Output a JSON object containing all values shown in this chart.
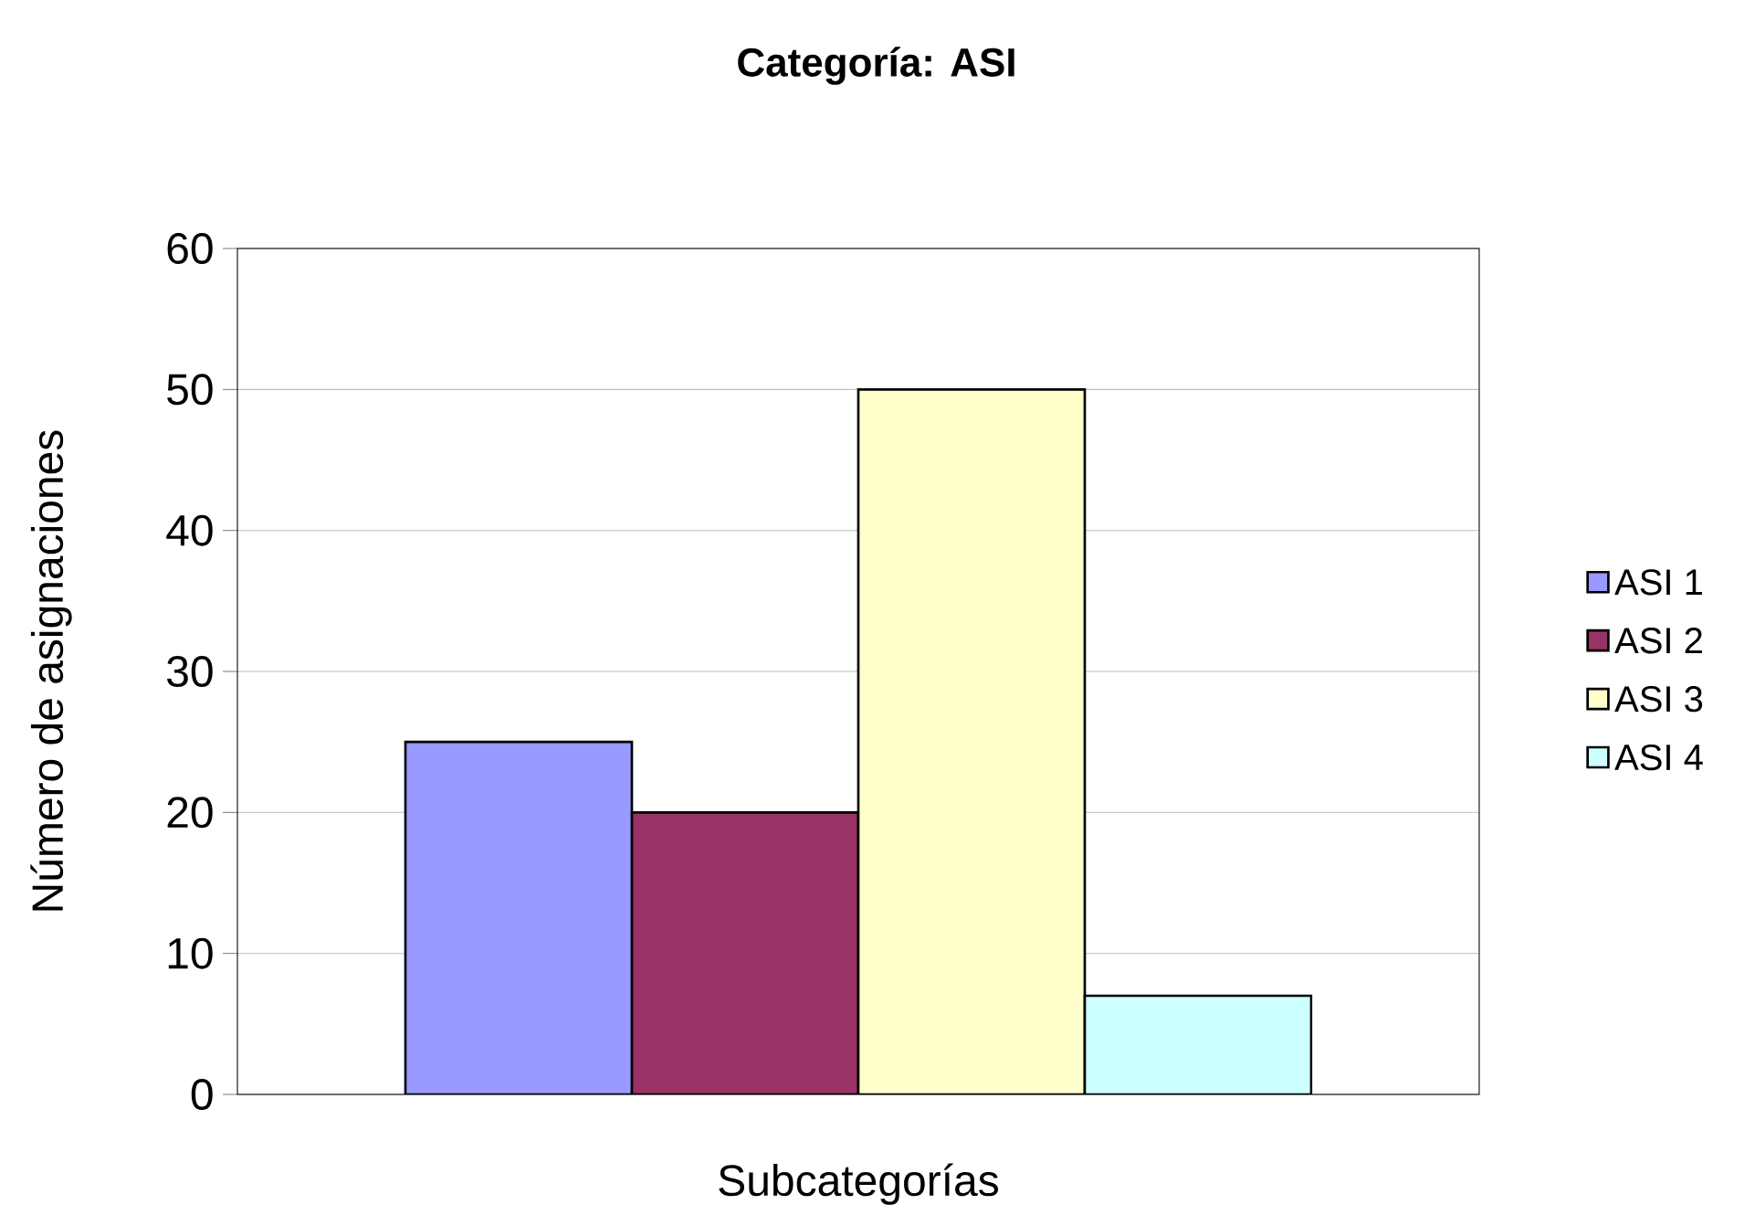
{
  "chart_data": {
    "type": "bar",
    "title": "Categoría: ASI",
    "xlabel": "Subcategorías",
    "ylabel": "Número de asignaciones",
    "categories": [
      null
    ],
    "series": [
      {
        "name": "ASI 1",
        "color": "#9999ff",
        "values": [
          25
        ]
      },
      {
        "name": "ASI 2",
        "color": "#993366",
        "values": [
          20
        ]
      },
      {
        "name": "ASI 3",
        "color": "#ffffcc",
        "values": [
          50
        ]
      },
      {
        "name": "ASI 4",
        "color": "#ccffff",
        "values": [
          7
        ]
      }
    ],
    "ylim": [
      0,
      60
    ],
    "yticks": [
      0,
      10,
      20,
      30,
      40,
      50,
      60
    ],
    "grid": "y",
    "legend": "right"
  }
}
